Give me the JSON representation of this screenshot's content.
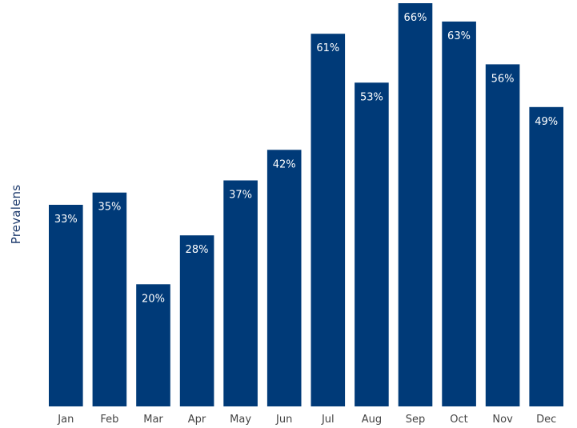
{
  "chart_data": {
    "type": "bar",
    "title": "",
    "xlabel": "",
    "ylabel": "Prevalens",
    "categories": [
      "Jan",
      "Feb",
      "Mar",
      "Apr",
      "May",
      "Jun",
      "Jul",
      "Aug",
      "Sep",
      "Oct",
      "Nov",
      "Dec"
    ],
    "values": [
      33,
      35,
      20,
      28,
      37,
      42,
      61,
      53,
      66,
      63,
      56,
      49
    ],
    "data_labels": [
      "33%",
      "35%",
      "20%",
      "28%",
      "37%",
      "42%",
      "61%",
      "53%",
      "66%",
      "63%",
      "56%",
      "49%"
    ],
    "ylim": [
      0,
      66
    ],
    "grid": false,
    "legend": "none",
    "colors": {
      "bar": "#003a78",
      "data_label": "#ffffff",
      "axis_text": "#444444",
      "ylabel": "#1f3c6e"
    }
  }
}
